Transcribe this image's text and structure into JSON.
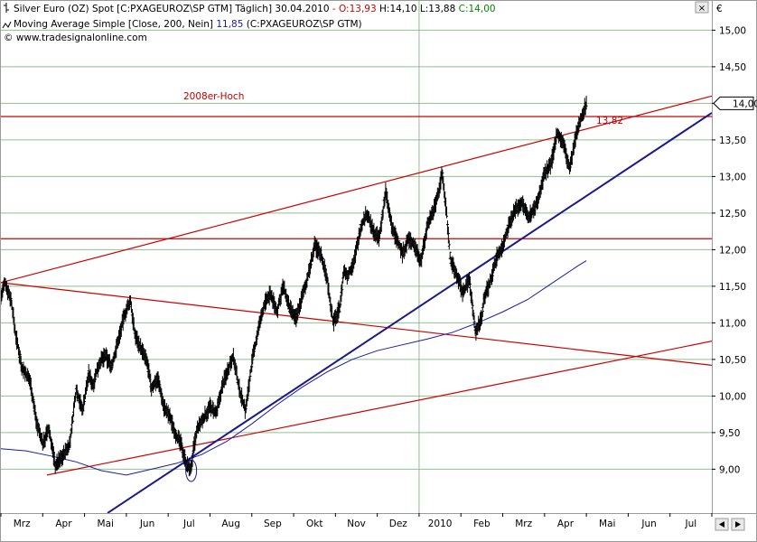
{
  "header": {
    "line1_name": "Silver Euro (OZ) Spot [C:PXAGEUROZ\\SP GTM]  Täglich] 30.04.2010",
    "line1_o": " - O:13,93",
    "line1_hl": " H:14,10 L:13,88",
    "line1_c": " C:14,00",
    "line2_name": "Moving Average Simple [Close, 200, Nein]",
    "line2_val": " 11,85",
    "line2_src": " (C:PXAGEUROZ\\SP GTM)",
    "line3": "© www.tradesignalonline.com",
    "currency": "€",
    "close_label": "14,00",
    "annotation_high": "2008er-Hoch",
    "annotation_level": "13,82"
  },
  "colors": {
    "price": "#000000",
    "trend": "#cc0000",
    "support": "#1a1a8c",
    "ma": "#1a1aaa",
    "grid": "#8fbf8f",
    "header_o": "#cc0000",
    "header_c": "#008800"
  },
  "chart_data": {
    "type": "line",
    "title": "",
    "xlabel": "",
    "ylabel": "",
    "ylim": [
      8.4,
      15.4
    ],
    "y_ticks": [
      9.0,
      9.5,
      10.0,
      10.5,
      11.0,
      11.5,
      12.0,
      12.5,
      13.0,
      13.5,
      14.0,
      14.5,
      15.0
    ],
    "y_tick_labels": [
      "9,00",
      "9,50",
      "10,00",
      "10,50",
      "11,00",
      "11,50",
      "12,00",
      "12,50",
      "13,00",
      "13,50",
      "14,00",
      "14,50",
      "15,00"
    ],
    "x_ticks": [
      "Mrz",
      "Apr",
      "Mai",
      "Jun",
      "Jul",
      "Aug",
      "Sep",
      "Okt",
      "Nov",
      "Dez",
      "2010",
      "Feb",
      "Mrz",
      "Apr",
      "Mai",
      "Jun",
      "Jul"
    ],
    "x_tick_pos": [
      0.5,
      1.5,
      2.5,
      3.5,
      4.5,
      5.5,
      6.5,
      7.5,
      8.5,
      9.5,
      10.5,
      11.5,
      12.5,
      13.5,
      14.5,
      15.5,
      16.5
    ],
    "x_range": [
      0,
      17
    ],
    "grid": "horizontal at each y tick, vertical at year change",
    "series": [
      {
        "kind": "price",
        "x": [
          0.0,
          0.1,
          0.25,
          0.35,
          0.5,
          0.7,
          0.85,
          1.0,
          1.15,
          1.3,
          1.5,
          1.65,
          1.8,
          1.95,
          2.1,
          2.2,
          2.35,
          2.5,
          2.65,
          2.8,
          2.95,
          3.1,
          3.2,
          3.35,
          3.5,
          3.6,
          3.75,
          3.9,
          4.05,
          4.2,
          4.3,
          4.45,
          4.55,
          4.6,
          4.7,
          4.85,
          5.0,
          5.15,
          5.3,
          5.45,
          5.55,
          5.7,
          5.85,
          6.0,
          6.15,
          6.3,
          6.45,
          6.6,
          6.75,
          6.9,
          7.05,
          7.2,
          7.35,
          7.5,
          7.65,
          7.8,
          7.95,
          8.1,
          8.2,
          8.3,
          8.45,
          8.6,
          8.75,
          8.9,
          9.05,
          9.2,
          9.35,
          9.5,
          9.6,
          9.75,
          9.9,
          10.05,
          10.2,
          10.35,
          10.45,
          10.55,
          10.65,
          10.75,
          10.9,
          11.05,
          11.2,
          11.35,
          11.5,
          11.55,
          11.7,
          11.85,
          12.0,
          12.15,
          12.3,
          12.45,
          12.6,
          12.75,
          12.85,
          13.0,
          13.15,
          13.3,
          13.45,
          13.6,
          13.75,
          13.9,
          14.0
        ],
        "values": [
          11.35,
          11.55,
          11.3,
          10.85,
          10.4,
          10.2,
          9.65,
          9.35,
          9.55,
          9.05,
          9.2,
          9.35,
          10.1,
          9.8,
          10.3,
          10.15,
          10.45,
          10.55,
          10.4,
          10.75,
          11.1,
          11.3,
          10.85,
          10.65,
          10.45,
          10.1,
          10.25,
          9.85,
          9.7,
          9.45,
          9.35,
          9.05,
          9.0,
          9.25,
          9.55,
          9.7,
          9.85,
          9.75,
          10.15,
          10.4,
          10.55,
          10.1,
          9.8,
          10.45,
          10.9,
          11.25,
          11.4,
          11.15,
          11.5,
          11.2,
          11.05,
          11.35,
          11.65,
          12.05,
          11.95,
          11.6,
          11.0,
          11.2,
          11.7,
          11.65,
          11.85,
          12.3,
          12.5,
          12.25,
          12.15,
          12.8,
          12.3,
          12.1,
          11.95,
          12.15,
          12.05,
          11.85,
          12.35,
          12.55,
          12.75,
          13.05,
          12.55,
          11.85,
          11.65,
          11.4,
          11.6,
          10.85,
          11.1,
          11.35,
          11.55,
          11.9,
          12.05,
          12.35,
          12.55,
          12.65,
          12.45,
          12.55,
          12.7,
          13.05,
          13.15,
          13.6,
          13.45,
          13.1,
          13.55,
          13.85,
          14.0
        ]
      },
      {
        "kind": "ma",
        "x": [
          0.0,
          0.6,
          1.2,
          1.8,
          2.4,
          3.0,
          3.6,
          4.2,
          4.8,
          5.4,
          6.0,
          6.6,
          7.2,
          7.8,
          8.4,
          9.0,
          9.6,
          10.2,
          10.8,
          11.4,
          12.0,
          12.6,
          13.2,
          13.8,
          14.0
        ],
        "values": [
          9.28,
          9.25,
          9.18,
          9.1,
          8.98,
          8.92,
          9.0,
          9.08,
          9.2,
          9.38,
          9.62,
          9.88,
          10.12,
          10.33,
          10.5,
          10.62,
          10.7,
          10.78,
          10.87,
          11.0,
          11.15,
          11.32,
          11.55,
          11.78,
          11.85
        ]
      }
    ],
    "lines": [
      {
        "kind": "trend",
        "x": [
          0.0,
          17.0
        ],
        "values": [
          11.55,
          14.1
        ]
      },
      {
        "kind": "trend",
        "x": [
          0.0,
          17.0
        ],
        "values": [
          11.55,
          10.42
        ]
      },
      {
        "kind": "trend",
        "x": [
          1.1,
          17.0
        ],
        "values": [
          8.92,
          10.75
        ]
      },
      {
        "kind": "horizontal",
        "x": [
          0.0,
          17.0
        ],
        "values": [
          13.82,
          13.82
        ]
      },
      {
        "kind": "horizontal",
        "x": [
          0.0,
          17.0
        ],
        "values": [
          12.15,
          12.15
        ]
      },
      {
        "kind": "support",
        "x": [
          2.55,
          17.0
        ],
        "values": [
          8.4,
          13.87
        ]
      }
    ],
    "markers": [
      {
        "kind": "ellipse",
        "x": 4.55,
        "y": 8.98
      }
    ]
  }
}
